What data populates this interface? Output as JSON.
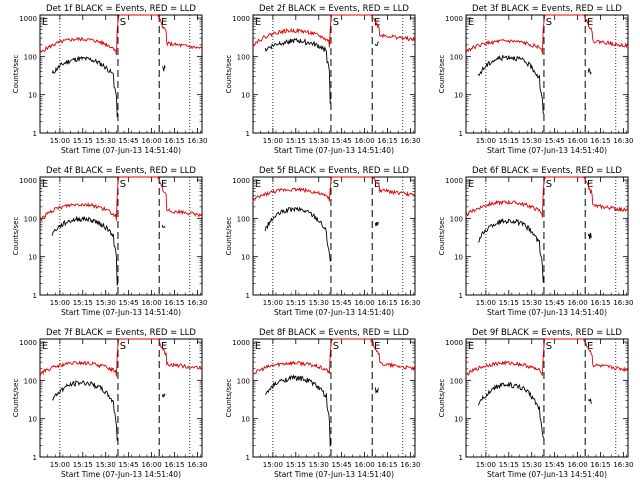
{
  "chart_data": {
    "type": "line",
    "y_axis_label": "Counts/sec",
    "x_axis_label": "Start Time (07-Jun-13 14:51:40)",
    "x_ticks": [
      "15:00",
      "15:15",
      "15:30",
      "15:45",
      "16:00",
      "16:15",
      "16:30"
    ],
    "y_ticks": [
      "1",
      "10",
      "100",
      "1000"
    ],
    "ylim": [
      1,
      1200
    ],
    "xlim_minutes_from_start": [
      -5,
      101
    ],
    "legend": {
      "black": "Events",
      "red": "LLD"
    },
    "vlines_dotted_minutes": [
      8,
      93
    ],
    "vlines_dashed_minutes": [
      46,
      73
    ],
    "markers": [
      {
        "label": "S",
        "minute": 46
      },
      {
        "label": "E",
        "minute": 73
      }
    ],
    "panel_corner_label": "E",
    "panels": [
      {
        "title": "Det 1f BLACK = Events, RED = LLD",
        "show_ylabel": true,
        "red_base": 120,
        "red_peak": 300,
        "black_base": 35,
        "black_peak": 90,
        "black_min": 3
      },
      {
        "title": "Det 2f BLACK = Events, RED = LLD",
        "show_ylabel": true,
        "red_base": 200,
        "red_peak": 500,
        "black_base": 150,
        "black_peak": 260,
        "black_min": 6
      },
      {
        "title": "Det 3f BLACK = Events, RED = LLD",
        "show_ylabel": true,
        "red_base": 140,
        "red_peak": 260,
        "black_base": 30,
        "black_peak": 100,
        "black_min": 3
      },
      {
        "title": "Det 4f BLACK = Events, RED = LLD",
        "show_ylabel": true,
        "red_base": 90,
        "red_peak": 250,
        "black_base": 40,
        "black_peak": 100,
        "black_min": 2
      },
      {
        "title": "Det 5f BLACK = Events, RED = LLD",
        "show_ylabel": true,
        "red_base": 300,
        "red_peak": 600,
        "black_base": 50,
        "black_peak": 180,
        "black_min": 8
      },
      {
        "title": "Det 6f BLACK = Events, RED = LLD",
        "show_ylabel": true,
        "red_base": 120,
        "red_peak": 280,
        "black_base": 25,
        "black_peak": 90,
        "black_min": 2
      },
      {
        "title": "Det 7f BLACK = Events, RED = LLD",
        "show_ylabel": true,
        "red_base": 150,
        "red_peak": 300,
        "black_base": 30,
        "black_peak": 90,
        "black_min": 3
      },
      {
        "title": "Det 8f BLACK = Events, RED = LLD",
        "show_ylabel": true,
        "red_base": 150,
        "red_peak": 300,
        "black_base": 40,
        "black_peak": 120,
        "black_min": 2
      },
      {
        "title": "Det 9f BLACK = Events, RED = LLD",
        "show_ylabel": true,
        "red_base": 140,
        "red_peak": 300,
        "black_base": 20,
        "black_peak": 80,
        "black_min": 3
      }
    ]
  }
}
